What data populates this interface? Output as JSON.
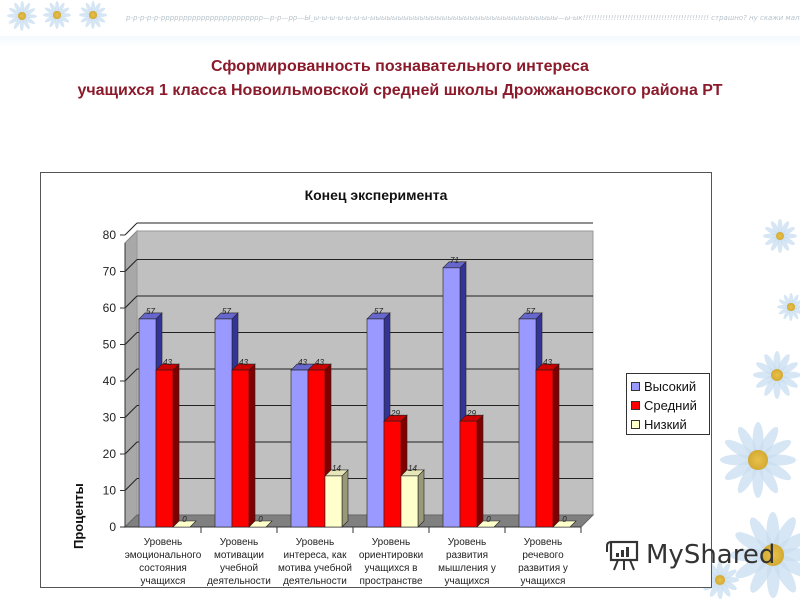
{
  "header": {
    "ticker_text": "р-р-р-р-р-ррррррррррррррррррррррр—р-р—рр—Ы_ы-ы-ы-ы-ы-ы-ы-ыыыыыыыыыыыыыыыыыыыыыыыыыыыыыыыыыы—ы-ык!!!!!!!!!!!!!!!!!!!!!!!!!!!!!!!!!!!!!!!!!!!!! страшно? ну скажи малыш?"
  },
  "slide": {
    "title_line1": "Сформированность познавательного интереса",
    "title_line2": "учащихся 1 класса  Новоильмовской средней школы  Дрожжановского  района   РТ"
  },
  "watermark": {
    "text": "MyShared",
    "icon": "presentation-board-icon"
  },
  "colors": {
    "title": "#8b1a2b",
    "high": "#9999ff",
    "medium": "#ff0000",
    "low": "#ffffcc",
    "plot_bg": "#c0c0c0"
  },
  "chart_data": {
    "type": "bar",
    "title": "Конец эксперимента",
    "xlabel": "",
    "ylabel": "Проценты",
    "ylim": [
      0,
      80
    ],
    "yticks": [
      0,
      10,
      20,
      30,
      40,
      50,
      60,
      70,
      80
    ],
    "grid": true,
    "legend_position": "right",
    "categories": [
      "Уровень эмоционального состояния учащихся",
      "Уровень мотивации учебной деятельности",
      "Уровень интереса, как мотива учебной деятельности",
      "Уровень ориентировки учащихся в пространстве",
      "Уровень развития мышления у учащихся",
      "Уровень речевого развития у учащихся"
    ],
    "category_lines": [
      [
        "Уровень",
        "эмоционального",
        "состояния",
        "учащихся"
      ],
      [
        "Уровень",
        "мотивации",
        "учебной",
        "деятельности"
      ],
      [
        "Уровень",
        "интереса, как",
        "мотива учебной",
        "деятельности"
      ],
      [
        "Уровень",
        "ориентировки",
        "учащихся в",
        "пространстве"
      ],
      [
        "Уровень",
        "развития",
        "мышления у",
        "учащихся"
      ],
      [
        "Уровень",
        "речевого",
        "развития у",
        "учащихся"
      ]
    ],
    "series": [
      {
        "name": "Высокий",
        "color": "#9999ff",
        "values": [
          57,
          57,
          43,
          57,
          71,
          57
        ]
      },
      {
        "name": "Средний",
        "color": "#ff0000",
        "values": [
          43,
          43,
          43,
          29,
          29,
          43
        ]
      },
      {
        "name": "Низкий",
        "color": "#ffffcc",
        "values": [
          0,
          0,
          14,
          14,
          0,
          0
        ]
      }
    ]
  }
}
